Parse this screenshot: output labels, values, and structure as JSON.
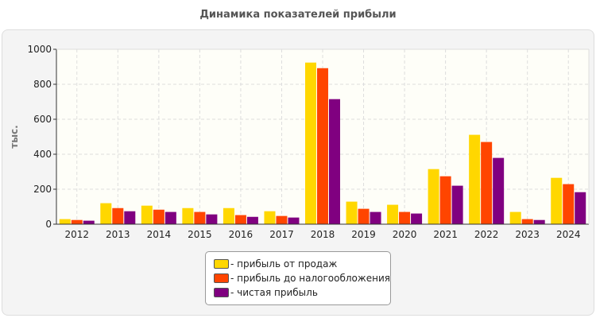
{
  "chart_data": {
    "type": "bar",
    "title": "Динамика показателей прибыли",
    "ylabel": "тыс.",
    "xlabel": "",
    "ylim": [
      0,
      1000
    ],
    "yticks": [
      0,
      200,
      400,
      600,
      800,
      1000
    ],
    "grid": true,
    "legend_position": "bottom",
    "categories": [
      "2012",
      "2013",
      "2014",
      "2015",
      "2016",
      "2017",
      "2018",
      "2019",
      "2020",
      "2021",
      "2022",
      "2023",
      "2024"
    ],
    "series": [
      {
        "name": "- прибыль от продаж",
        "color": "#FFD700",
        "values": [
          29,
          120,
          106,
          92,
          92,
          74,
          924,
          129,
          111,
          315,
          511,
          70,
          265
        ]
      },
      {
        "name": "- прибыль до налогообложения",
        "color": "#FF4500",
        "values": [
          24,
          92,
          83,
          70,
          52,
          47,
          892,
          88,
          70,
          274,
          470,
          29,
          229
        ]
      },
      {
        "name": "- чистая прибыль",
        "color": "#800080",
        "values": [
          20,
          74,
          70,
          56,
          42,
          38,
          715,
          70,
          61,
          220,
          379,
          24,
          183
        ]
      }
    ]
  }
}
